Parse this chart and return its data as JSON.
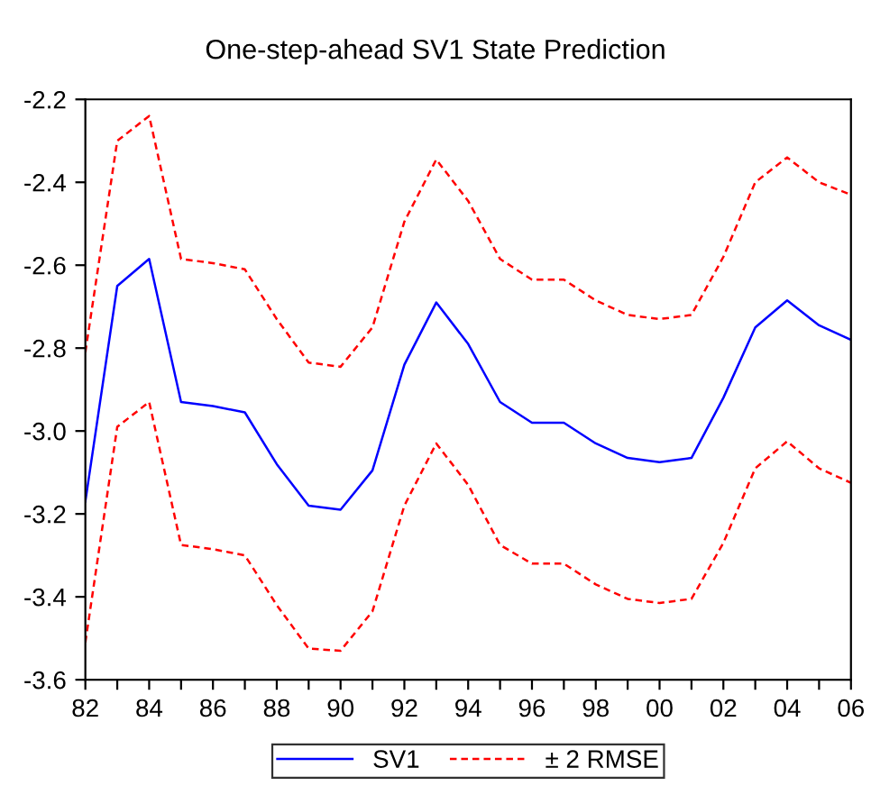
{
  "chart_data": {
    "type": "line",
    "title": "One-step-ahead SV1 State Prediction",
    "x": [
      1982,
      1983,
      1984,
      1985,
      1986,
      1987,
      1988,
      1989,
      1990,
      1991,
      1992,
      1993,
      1994,
      1995,
      1996,
      1997,
      1998,
      1999,
      2000,
      2001,
      2002,
      2003,
      2004,
      2005,
      2006
    ],
    "series": [
      {
        "name": "SV1",
        "color": "#0000ff",
        "line_style": "solid",
        "values": [
          -3.17,
          -2.65,
          -2.585,
          -2.93,
          -2.94,
          -2.955,
          -3.08,
          -3.18,
          -3.19,
          -3.095,
          -2.84,
          -2.69,
          -2.79,
          -2.93,
          -2.98,
          -2.98,
          -3.03,
          -3.065,
          -3.075,
          -3.065,
          -2.92,
          -2.75,
          -2.685,
          -2.745,
          -2.78
        ]
      },
      {
        "name": "± 2 RMSE",
        "color": "#ff0000",
        "line_style": "dashed",
        "values": [
          -2.81,
          -2.3,
          -2.24,
          -2.585,
          -2.595,
          -2.61,
          -2.73,
          -2.835,
          -2.845,
          -2.75,
          -2.495,
          -2.345,
          -2.445,
          -2.585,
          -2.635,
          -2.635,
          -2.685,
          -2.72,
          -2.73,
          -2.72,
          -2.58,
          -2.4,
          -2.34,
          -2.4,
          -2.43
        ]
      },
      {
        "color": "#ff0000",
        "line_style": "dashed",
        "values": [
          -3.51,
          -2.99,
          -2.93,
          -3.275,
          -3.285,
          -3.3,
          -3.42,
          -3.525,
          -3.53,
          -3.435,
          -3.18,
          -3.03,
          -3.13,
          -3.275,
          -3.32,
          -3.32,
          -3.37,
          -3.405,
          -3.415,
          -3.405,
          -3.27,
          -3.09,
          -3.025,
          -3.09,
          -3.125
        ]
      }
    ],
    "xlim": [
      1982,
      2006
    ],
    "xticks": [
      {
        "value": 1982,
        "label": "82"
      },
      {
        "value": 1983,
        "label": null
      },
      {
        "value": 1984,
        "label": "84"
      },
      {
        "value": 1985,
        "label": null
      },
      {
        "value": 1986,
        "label": "86"
      },
      {
        "value": 1987,
        "label": null
      },
      {
        "value": 1988,
        "label": "88"
      },
      {
        "value": 1989,
        "label": null
      },
      {
        "value": 1990,
        "label": "90"
      },
      {
        "value": 1991,
        "label": null
      },
      {
        "value": 1992,
        "label": "92"
      },
      {
        "value": 1993,
        "label": null
      },
      {
        "value": 1994,
        "label": "94"
      },
      {
        "value": 1995,
        "label": null
      },
      {
        "value": 1996,
        "label": "96"
      },
      {
        "value": 1997,
        "label": null
      },
      {
        "value": 1998,
        "label": "98"
      },
      {
        "value": 1999,
        "label": null
      },
      {
        "value": 2000,
        "label": "00"
      },
      {
        "value": 2001,
        "label": null
      },
      {
        "value": 2002,
        "label": "02"
      },
      {
        "value": 2003,
        "label": null
      },
      {
        "value": 2004,
        "label": "04"
      },
      {
        "value": 2005,
        "label": null
      },
      {
        "value": 2006,
        "label": "06"
      }
    ],
    "ylim": [
      -3.6,
      -2.2
    ],
    "yticks": [
      -3.6,
      -3.4,
      -3.2,
      {
        "value": -3.0,
        "label": "-3.0"
      },
      -2.8,
      -2.6,
      -2.4,
      -2.2
    ],
    "grid": false,
    "legend": "bottom",
    "marker": "none"
  }
}
